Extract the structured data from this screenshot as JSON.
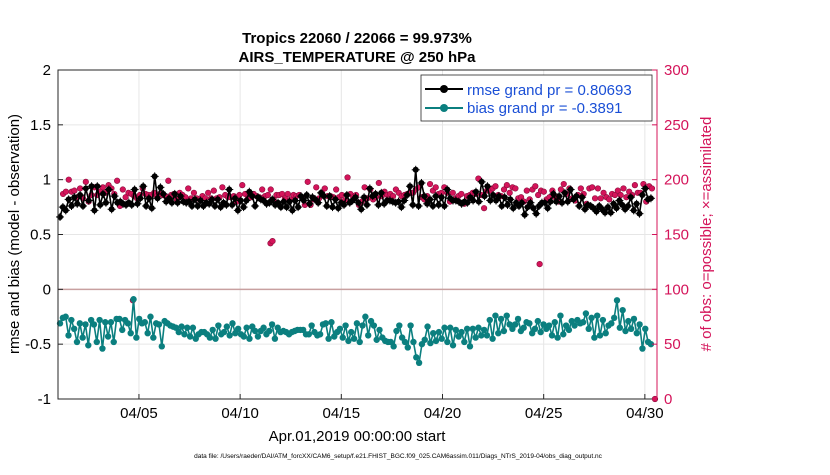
{
  "chart_data": {
    "type": "line",
    "title_line1": "Tropics 22060 / 22066 = 99.973%",
    "title_line2": "AIRS_TEMPERATURE @ 250 hPa",
    "xlabel": "Apr.01,2019 00:00:00 start",
    "ylabel_left": "rmse and bias (model - observation)",
    "ylabel_right": "# of obs: o=possible; ×=assimilated",
    "footer": "data file: /Users/raeder/DAI/ATM_forcXX/CAM6_setup/f.e21.FHIST_BGC.f09_025.CAM6assim.011/Diags_NTrS_2019-04/obs_diag_output.nc",
    "x_ticks": [
      "04/05",
      "04/10",
      "04/15",
      "04/20",
      "04/25",
      "04/30"
    ],
    "x_tick_days": [
      5,
      10,
      15,
      20,
      25,
      30
    ],
    "xlim": [
      1,
      30.6
    ],
    "ylim_left": [
      -1,
      2
    ],
    "ylim_right": [
      0,
      300
    ],
    "left_ticks": [
      "-1",
      "-0.5",
      "0",
      "0.5",
      "1",
      "1.5",
      "2"
    ],
    "right_ticks": [
      "0",
      "50",
      "100",
      "150",
      "200",
      "250",
      "300"
    ],
    "colors": {
      "rmse": "#000000",
      "bias": "#0b7f7f",
      "obs": "#d4145a",
      "zero_line": "#c8a0a0",
      "legend_text": "#1a4fd6"
    },
    "legend": {
      "rmse_label": "rmse grand pr = 0.80693",
      "bias_label": "bias grand pr = -0.3891"
    },
    "series": [
      {
        "name": "rmse",
        "values": [
          0.66,
          0.75,
          0.72,
          0.82,
          0.76,
          0.84,
          0.78,
          0.86,
          0.76,
          0.92,
          0.81,
          0.94,
          0.72,
          0.94,
          0.77,
          0.87,
          0.79,
          0.91,
          0.73,
          0.85,
          0.79,
          0.8,
          0.78,
          0.77,
          0.79,
          0.77,
          0.91,
          0.78,
          0.83,
          0.94,
          0.76,
          0.83,
          0.74,
          1.03,
          0.83,
          0.93,
          0.87,
          0.8,
          0.83,
          0.79,
          0.87,
          0.79,
          0.85,
          0.8,
          0.79,
          0.8,
          0.76,
          0.82,
          0.76,
          0.81,
          0.76,
          0.79,
          0.78,
          0.82,
          0.76,
          0.82,
          0.75,
          0.79,
          0.77,
          0.91,
          0.77,
          0.83,
          0.72,
          0.81,
          0.75,
          0.81,
          0.89,
          0.85,
          0.76,
          0.84,
          0.82,
          0.81,
          0.78,
          0.79,
          0.82,
          0.77,
          0.79,
          0.75,
          0.8,
          0.75,
          0.8,
          0.72,
          0.81,
          0.75,
          0.85,
          0.81,
          0.86,
          0.78,
          0.84,
          0.82,
          0.79,
          0.88,
          0.85,
          0.76,
          0.85,
          0.75,
          0.82,
          0.74,
          0.79,
          0.77,
          0.86,
          0.79,
          0.81,
          0.84,
          0.79,
          0.73,
          0.84,
          0.77,
          0.92,
          0.85,
          0.87,
          0.77,
          0.88,
          0.78,
          0.81,
          0.81,
          0.8,
          0.79,
          0.8,
          0.75,
          0.81,
          0.86,
          0.94,
          0.77,
          1.09,
          0.76,
          0.97,
          0.85,
          0.78,
          0.82,
          0.76,
          0.85,
          0.77,
          0.84,
          0.76,
          0.91,
          0.83,
          0.81,
          0.81,
          0.8,
          0.78,
          0.8,
          0.79,
          0.84,
          0.81,
          0.89,
          0.8,
          0.98,
          0.85,
          0.94,
          0.81,
          0.86,
          0.81,
          0.85,
          0.76,
          0.84,
          0.77,
          0.82,
          0.74,
          0.79,
          0.76,
          0.79,
          0.68,
          0.75,
          0.79,
          0.74,
          0.69,
          0.76,
          0.79,
          0.79,
          0.74,
          0.8,
          0.87,
          0.8,
          0.85,
          0.79,
          0.88,
          0.8,
          0.91,
          0.82,
          0.85,
          0.76,
          0.84,
          0.73,
          0.77,
          0.76,
          0.74,
          0.71,
          0.76,
          0.73,
          0.7,
          0.75,
          0.7,
          0.78,
          0.74,
          0.81,
          0.77,
          0.73,
          0.76,
          0.84,
          0.72,
          0.78,
          0.69,
          0.86,
          0.92,
          0.82,
          0.83
        ]
      },
      {
        "name": "bias",
        "values": [
          -0.31,
          -0.26,
          -0.25,
          -0.42,
          -0.28,
          -0.36,
          -0.48,
          -0.31,
          -0.44,
          -0.32,
          -0.51,
          -0.28,
          -0.32,
          -0.48,
          -0.28,
          -0.54,
          -0.3,
          -0.43,
          -0.3,
          -0.48,
          -0.27,
          -0.27,
          -0.37,
          -0.28,
          -0.31,
          -0.4,
          -0.09,
          -0.44,
          -0.27,
          -0.31,
          -0.3,
          -0.4,
          -0.25,
          -0.44,
          -0.31,
          -0.32,
          -0.52,
          -0.29,
          -0.31,
          -0.33,
          -0.34,
          -0.35,
          -0.39,
          -0.34,
          -0.41,
          -0.35,
          -0.43,
          -0.35,
          -0.45,
          -0.41,
          -0.39,
          -0.39,
          -0.41,
          -0.44,
          -0.37,
          -0.45,
          -0.33,
          -0.41,
          -0.39,
          -0.34,
          -0.42,
          -0.31,
          -0.4,
          -0.36,
          -0.41,
          -0.43,
          -0.35,
          -0.45,
          -0.34,
          -0.38,
          -0.43,
          -0.38,
          -0.35,
          -0.41,
          -0.38,
          -0.32,
          -0.45,
          -0.35,
          -0.39,
          -0.38,
          -0.39,
          -0.41,
          -0.39,
          -0.38,
          -0.37,
          -0.37,
          -0.37,
          -0.41,
          -0.41,
          -0.33,
          -0.39,
          -0.42,
          -0.41,
          -0.32,
          -0.31,
          -0.45,
          -0.3,
          -0.43,
          -0.39,
          -0.36,
          -0.44,
          -0.33,
          -0.47,
          -0.39,
          -0.45,
          -0.31,
          -0.48,
          -0.33,
          -0.25,
          -0.42,
          -0.29,
          -0.33,
          -0.46,
          -0.37,
          -0.44,
          -0.47,
          -0.48,
          -0.48,
          -0.52,
          -0.38,
          -0.33,
          -0.44,
          -0.48,
          -0.53,
          -0.33,
          -0.48,
          -0.62,
          -0.67,
          -0.5,
          -0.46,
          -0.34,
          -0.49,
          -0.4,
          -0.47,
          -0.39,
          -0.45,
          -0.35,
          -0.48,
          -0.35,
          -0.51,
          -0.37,
          -0.43,
          -0.39,
          -0.48,
          -0.36,
          -0.52,
          -0.36,
          -0.44,
          -0.35,
          -0.42,
          -0.37,
          -0.42,
          -0.28,
          -0.45,
          -0.24,
          -0.4,
          -0.27,
          -0.38,
          -0.24,
          -0.32,
          -0.36,
          -0.32,
          -0.27,
          -0.38,
          -0.35,
          -0.3,
          -0.31,
          -0.4,
          -0.36,
          -0.29,
          -0.39,
          -0.32,
          -0.36,
          -0.33,
          -0.42,
          -0.3,
          -0.44,
          -0.24,
          -0.41,
          -0.33,
          -0.37,
          -0.29,
          -0.33,
          -0.28,
          -0.31,
          -0.3,
          -0.22,
          -0.36,
          -0.26,
          -0.44,
          -0.24,
          -0.42,
          -0.28,
          -0.4,
          -0.33,
          -0.31,
          -0.26,
          -0.1,
          -0.35,
          -0.19,
          -0.38,
          -0.29,
          -0.36,
          -0.27,
          -0.4,
          -0.32,
          -0.54,
          -0.36,
          -0.48,
          -0.5
        ]
      },
      {
        "name": "obs_possible",
        "values": [
          187,
          189,
          200,
          189,
          190,
          184,
          192,
          183,
          198,
          180,
          186,
          193,
          186,
          189,
          193,
          188,
          195,
          192,
          187,
          199,
          176,
          191,
          184,
          188,
          187,
          185,
          183,
          186,
          192,
          187,
          186,
          186,
          188,
          185,
          187,
          186,
          185,
          199,
          186,
          187,
          182,
          188,
          186,
          184,
          192,
          183,
          188,
          183,
          182,
          185,
          183,
          188,
          183,
          190,
          183,
          184,
          193,
          186,
          184,
          184,
          185,
          180,
          186,
          195,
          187,
          184,
          184,
          187,
          185,
          184,
          191,
          185,
          186,
          191,
          182,
          186,
          186,
          187,
          183,
          187,
          182,
          186,
          185,
          186,
          184,
          177,
          198,
          177,
          182,
          193,
          183,
          188,
          192,
          185,
          185,
          184,
          191,
          184,
          186,
          181,
          202,
          187,
          184,
          186,
          177,
          180,
          193,
          183,
          191,
          182,
          184,
          197,
          185,
          189,
          186,
          187,
          185,
          191,
          188,
          185,
          186,
          187,
          188,
          188,
          191,
          193,
          184,
          182,
          185,
          196,
          190,
          193,
          187,
          188,
          193,
          188,
          180,
          188,
          183,
          185,
          187,
          178,
          185,
          186,
          188,
          187,
          201,
          186,
          174,
          190,
          190,
          192,
          194,
          186,
          185,
          191,
          195,
          188,
          193,
          192,
          183,
          184,
          180,
          190,
          182,
          191,
          194,
          186,
          190,
          189,
          182,
          184,
          190,
          184,
          180,
          191,
          196,
          187,
          192,
          183,
          181,
          186,
          192,
          187,
          178,
          192,
          193,
          183,
          192,
          183,
          188,
          184,
          182,
          187,
          186,
          190,
          186,
          192,
          184,
          189,
          186,
          195,
          188,
          188,
          196,
          180,
          194,
          192
        ]
      },
      {
        "name": "outliers",
        "points": [
          [
            11.5,
            142
          ],
          [
            11.6,
            144
          ],
          [
            4.7,
            90
          ],
          [
            24.8,
            123
          ],
          [
            30.5,
            0
          ]
        ]
      }
    ]
  }
}
